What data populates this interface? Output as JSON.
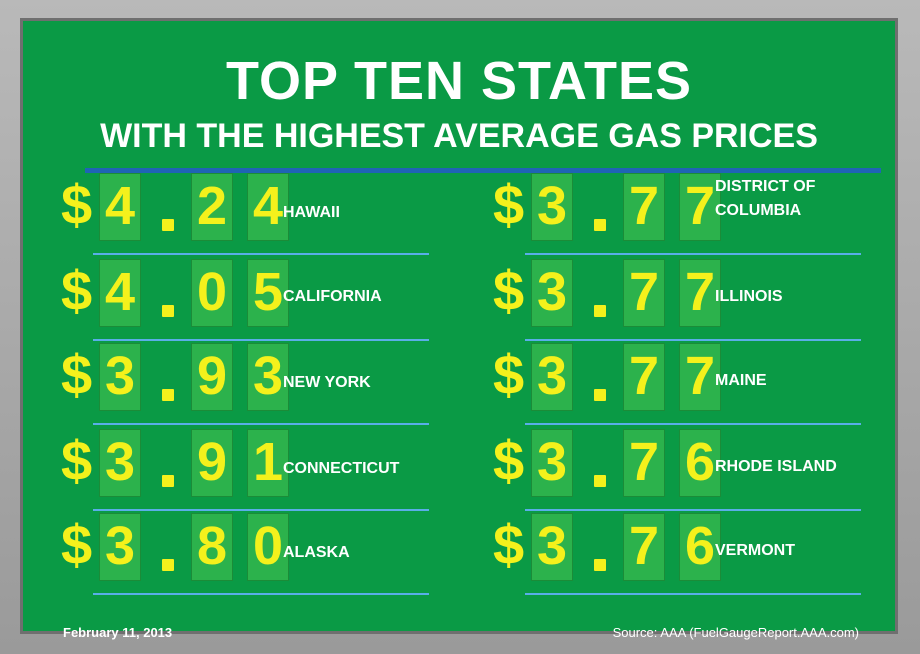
{
  "title": "TOP TEN STATES",
  "subtitle": "WITH THE HIGHEST AVERAGE GAS PRICES",
  "entries": [
    {
      "digits": [
        "4",
        "2",
        "4"
      ],
      "state": "HAWAII"
    },
    {
      "digits": [
        "4",
        "0",
        "5"
      ],
      "state": "CALIFORNIA"
    },
    {
      "digits": [
        "3",
        "9",
        "3"
      ],
      "state": "NEW YORK"
    },
    {
      "digits": [
        "3",
        "9",
        "1"
      ],
      "state": "CONNECTICUT"
    },
    {
      "digits": [
        "3",
        "8",
        "0"
      ],
      "state": "ALASKA"
    },
    {
      "digits": [
        "3",
        "7",
        "7"
      ],
      "state": "DISTRICT OF\nCOLUMBIA"
    },
    {
      "digits": [
        "3",
        "7",
        "7"
      ],
      "state": "ILLINOIS"
    },
    {
      "digits": [
        "3",
        "7",
        "7"
      ],
      "state": "MAINE"
    },
    {
      "digits": [
        "3",
        "7",
        "6"
      ],
      "state": "RHODE ISLAND"
    },
    {
      "digits": [
        "3",
        "7",
        "6"
      ],
      "state": "VERMONT"
    }
  ],
  "dollar_sign": "$",
  "footer": {
    "date": "February 11, 2013",
    "source": "Source: AAA (FuelGaugeReport.AAA.com)"
  },
  "colors": {
    "board": "#0a9a45",
    "digit_tile": "#2cb24c",
    "digit_text": "#f4f11c",
    "rule": "#5aaee8",
    "title_rule": "#1f64b5"
  }
}
